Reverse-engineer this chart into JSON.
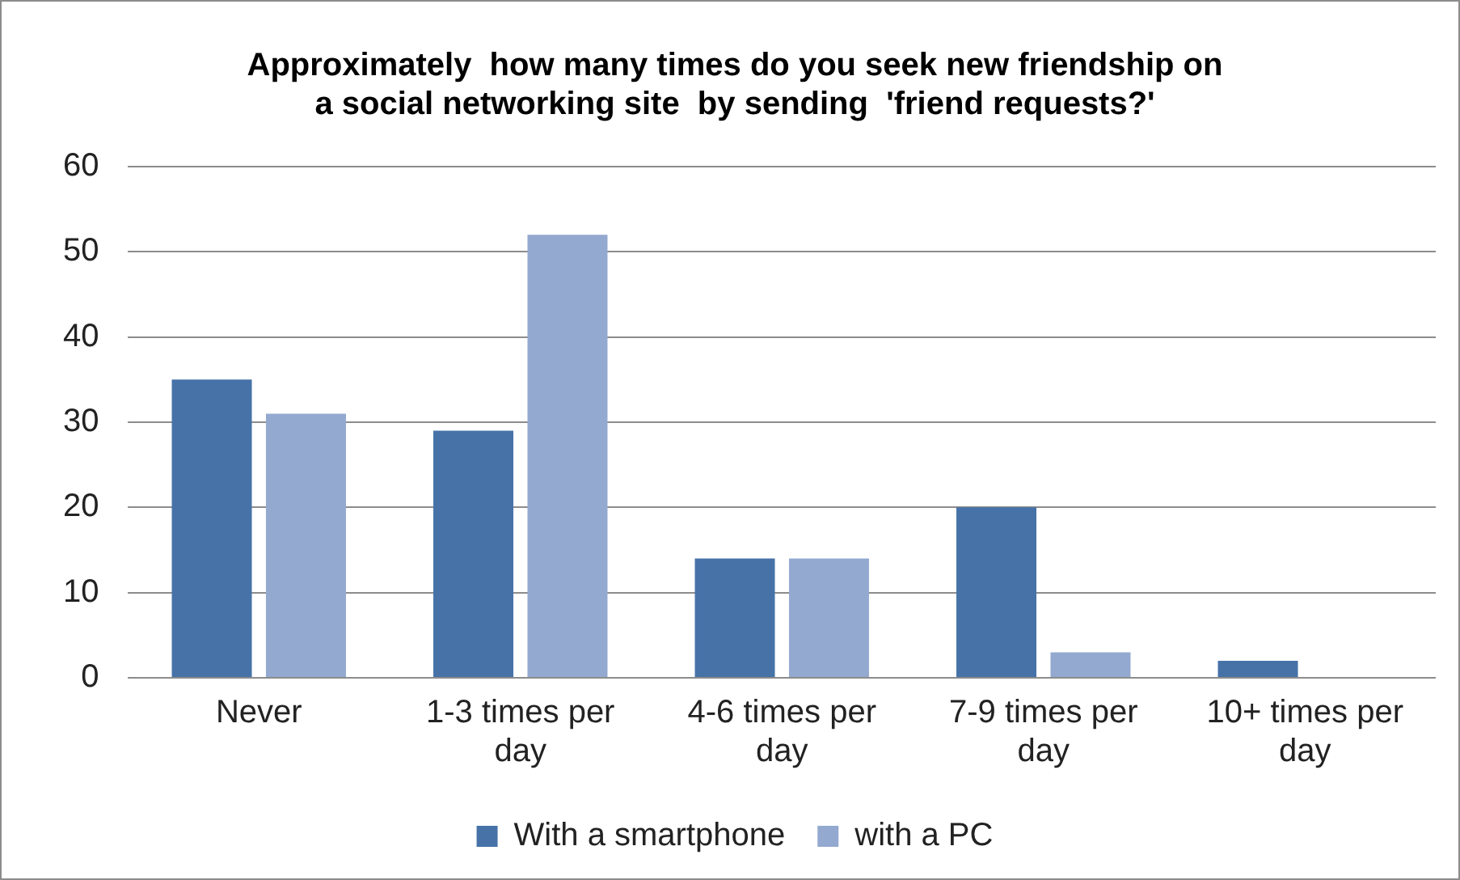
{
  "chart_data": {
    "type": "bar",
    "title": "Approximately  how many times do you seek new friendship on a social networking site  by sending  'friend requests?'",
    "categories": [
      "Never",
      "1-3 times per day",
      "4-6 times per day",
      "7-9 times per day",
      "10+ times per day"
    ],
    "series": [
      {
        "name": "With a smartphone",
        "color": "#4672a8",
        "values": [
          35,
          29,
          14,
          20,
          2
        ]
      },
      {
        "name": "with a PC",
        "color": "#94a9d0",
        "values": [
          31,
          52,
          14,
          3,
          0
        ]
      }
    ],
    "ylim": [
      0,
      60
    ],
    "yticks": [
      0,
      10,
      20,
      30,
      40,
      50,
      60
    ],
    "grid": "y",
    "legend": "bottom"
  }
}
